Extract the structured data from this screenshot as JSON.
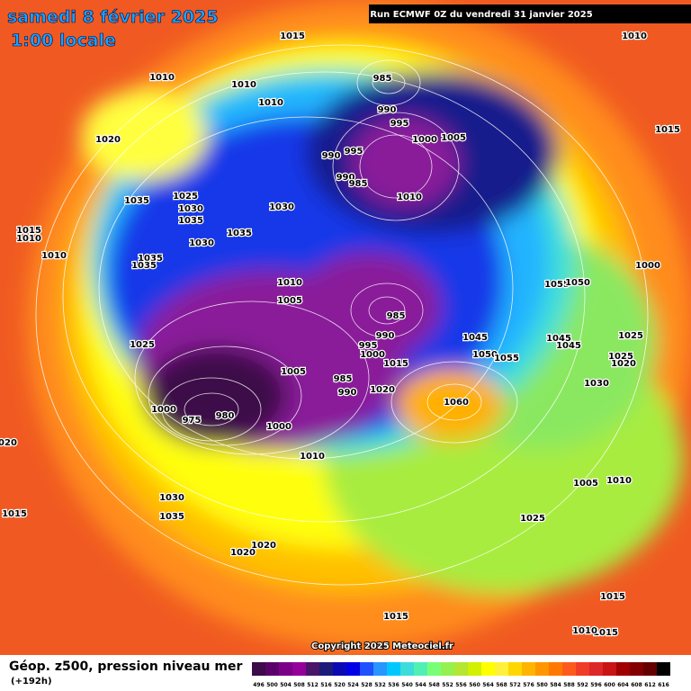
{
  "header": {
    "title": "samedi 8 février 2025",
    "time": "1:00 locale",
    "run": "Run ECMWF 0Z du vendredi 31 janvier 2025"
  },
  "footer": {
    "copyright": "Copyright 2025 Meteociel.fr",
    "caption": "Géop. z500, pression niveau mer",
    "lead": "(+192h)"
  },
  "colorbar": {
    "values": [
      496,
      500,
      504,
      508,
      512,
      516,
      520,
      524,
      528,
      532,
      536,
      540,
      544,
      548,
      552,
      556,
      560,
      564,
      568,
      572,
      576,
      580,
      584,
      588,
      592,
      596,
      600,
      604,
      608,
      612,
      616
    ],
    "colors": [
      "#3d0a4a",
      "#5a006a",
      "#7a0087",
      "#93009a",
      "#4a1468",
      "#1c1c78",
      "#0a0ab4",
      "#0000e6",
      "#1e50ff",
      "#2896ff",
      "#00c8ff",
      "#3cdcdc",
      "#50f0b4",
      "#78ff78",
      "#96f050",
      "#b4e632",
      "#d2f000",
      "#ffff00",
      "#fff03c",
      "#ffd700",
      "#ffb400",
      "#ff9600",
      "#ff7800",
      "#ff5a1e",
      "#f03c28",
      "#dc2828",
      "#c81414",
      "#a00000",
      "#820000",
      "#640000",
      "#000000"
    ]
  },
  "isobar_labels": [
    1015,
    1010,
    1010,
    1010,
    1010,
    985,
    990,
    995,
    1000,
    1005,
    1015,
    1020,
    990,
    995,
    990,
    985,
    1010,
    1035,
    1025,
    1030,
    1035,
    1030,
    1015,
    1010,
    1035,
    1030,
    1010,
    1035,
    1035,
    1000,
    1010,
    1055,
    1050,
    1005,
    985,
    990,
    995,
    1000,
    1045,
    1045,
    1045,
    1025,
    1025,
    1050,
    1055,
    1025,
    1020,
    1015,
    1005,
    985,
    990,
    1020,
    1030,
    1060,
    1000,
    980,
    975,
    1000,
    1010,
    1005,
    1010,
    1030,
    1035,
    1015,
    1025,
    1020,
    1020,
    1015,
    1015,
    1015,
    1010,
    1020
  ]
}
